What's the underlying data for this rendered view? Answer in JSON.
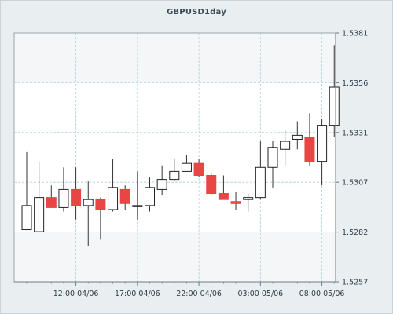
{
  "chart_data": {
    "type": "candlestick",
    "title": "GBPUSD1day",
    "ylim": [
      1.5257,
      1.5381
    ],
    "y_ticks": [
      "1.5381",
      "1.5356",
      "1.5331",
      "1.5307",
      "1.5282",
      "1.5257"
    ],
    "x_ticks": [
      "12:00 04/06",
      "17:00 04/06",
      "22:00 04/06",
      "03:00 05/06",
      "08:00 05/06"
    ],
    "grid": true,
    "colors": {
      "up": "#ffffff",
      "down": "#e84545",
      "wick": "#333333",
      "grid": "#a9d4d8",
      "band": "#f4f6f7",
      "plot": "#ffffff"
    },
    "candles": [
      {
        "open": 1.5283,
        "high": 1.5322,
        "low": 1.5283,
        "close": 1.5295
      },
      {
        "open": 1.5282,
        "high": 1.5317,
        "low": 1.5282,
        "close": 1.5299
      },
      {
        "open": 1.5299,
        "high": 1.5305,
        "low": 1.5295,
        "close": 1.5294
      },
      {
        "open": 1.5294,
        "high": 1.5314,
        "low": 1.5292,
        "close": 1.5303
      },
      {
        "open": 1.5303,
        "high": 1.5314,
        "low": 1.5288,
        "close": 1.5295
      },
      {
        "open": 1.5295,
        "high": 1.5307,
        "low": 1.5275,
        "close": 1.5298
      },
      {
        "open": 1.5298,
        "high": 1.5299,
        "low": 1.5278,
        "close": 1.5293
      },
      {
        "open": 1.5293,
        "high": 1.5318,
        "low": 1.5292,
        "close": 1.5304
      },
      {
        "open": 1.5303,
        "high": 1.5305,
        "low": 1.5293,
        "close": 1.5296
      },
      {
        "open": 1.5295,
        "high": 1.5312,
        "low": 1.5288,
        "close": 1.5295
      },
      {
        "open": 1.5295,
        "high": 1.5309,
        "low": 1.5292,
        "close": 1.5304
      },
      {
        "open": 1.5303,
        "high": 1.5315,
        "low": 1.53,
        "close": 1.5308
      },
      {
        "open": 1.5308,
        "high": 1.5318,
        "low": 1.5307,
        "close": 1.5312
      },
      {
        "open": 1.5312,
        "high": 1.532,
        "low": 1.5312,
        "close": 1.5316
      },
      {
        "open": 1.5316,
        "high": 1.5318,
        "low": 1.5309,
        "close": 1.531
      },
      {
        "open": 1.531,
        "high": 1.5311,
        "low": 1.53,
        "close": 1.5301
      },
      {
        "open": 1.5301,
        "high": 1.531,
        "low": 1.5298,
        "close": 1.5298
      },
      {
        "open": 1.5297,
        "high": 1.5302,
        "low": 1.5293,
        "close": 1.5296
      },
      {
        "open": 1.5298,
        "high": 1.5301,
        "low": 1.5292,
        "close": 1.5299
      },
      {
        "open": 1.5299,
        "high": 1.5327,
        "low": 1.5298,
        "close": 1.5314
      },
      {
        "open": 1.5314,
        "high": 1.5327,
        "low": 1.5304,
        "close": 1.5324
      },
      {
        "open": 1.5323,
        "high": 1.5333,
        "low": 1.5315,
        "close": 1.5327
      },
      {
        "open": 1.5328,
        "high": 1.5337,
        "low": 1.5323,
        "close": 1.533
      },
      {
        "open": 1.5329,
        "high": 1.5341,
        "low": 1.5315,
        "close": 1.5317
      },
      {
        "open": 1.5317,
        "high": 1.5338,
        "low": 1.5305,
        "close": 1.5335
      },
      {
        "open": 1.5335,
        "high": 1.5375,
        "low": 1.5329,
        "close": 1.5354
      }
    ]
  }
}
